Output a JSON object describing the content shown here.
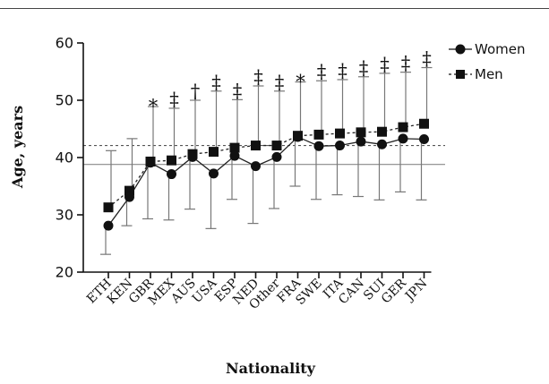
{
  "chart_data": {
    "type": "line",
    "xlabel": "Nationality",
    "ylabel": "Age, years",
    "ylim": [
      20,
      60
    ],
    "yticks": [
      20,
      30,
      40,
      50,
      60
    ],
    "grid": false,
    "legend_position": "top-right",
    "categories": [
      "ETH",
      "KEN",
      "GBR",
      "MEX",
      "AUS",
      "USA",
      "ESP",
      "NED",
      "Other",
      "FRA",
      "SWE",
      "ITA",
      "CAN",
      "SUI",
      "GER",
      "JPN"
    ],
    "significance": [
      "",
      "",
      "*",
      "‡",
      "†",
      "‡",
      "‡",
      "‡",
      "‡",
      "*",
      "‡",
      "‡",
      "‡",
      "‡",
      "‡",
      "‡"
    ],
    "series": [
      {
        "name": "Women",
        "marker": "circle",
        "line": "solid",
        "values": [
          28.1,
          33.1,
          39.1,
          37.1,
          40.1,
          37.2,
          40.3,
          38.5,
          40.1,
          43.6,
          42.0,
          42.1,
          42.8,
          42.3,
          43.3,
          43.2
        ],
        "err_low": [
          23.1,
          28.1,
          29.3,
          29.1,
          31.0,
          27.6,
          32.7,
          28.5,
          31.1,
          35.0,
          32.7,
          33.5,
          33.2,
          32.6,
          34.0,
          32.6
        ]
      },
      {
        "name": "Men",
        "marker": "square",
        "line": "dashed",
        "values": [
          31.3,
          34.2,
          39.3,
          39.5,
          40.6,
          41.0,
          41.7,
          42.1,
          42.1,
          43.8,
          44.0,
          44.2,
          44.4,
          44.5,
          45.3,
          45.9
        ],
        "err_high": [
          41.2,
          43.3,
          48.9,
          48.6,
          50.0,
          51.6,
          50.1,
          52.5,
          51.6,
          53.2,
          53.4,
          53.6,
          54.1,
          54.7,
          54.9,
          55.7
        ]
      }
    ],
    "reference_lines": [
      {
        "series": "Women",
        "value": 38.8,
        "style": "solid"
      },
      {
        "series": "Men",
        "value": 42.1,
        "style": "dashed"
      }
    ]
  }
}
